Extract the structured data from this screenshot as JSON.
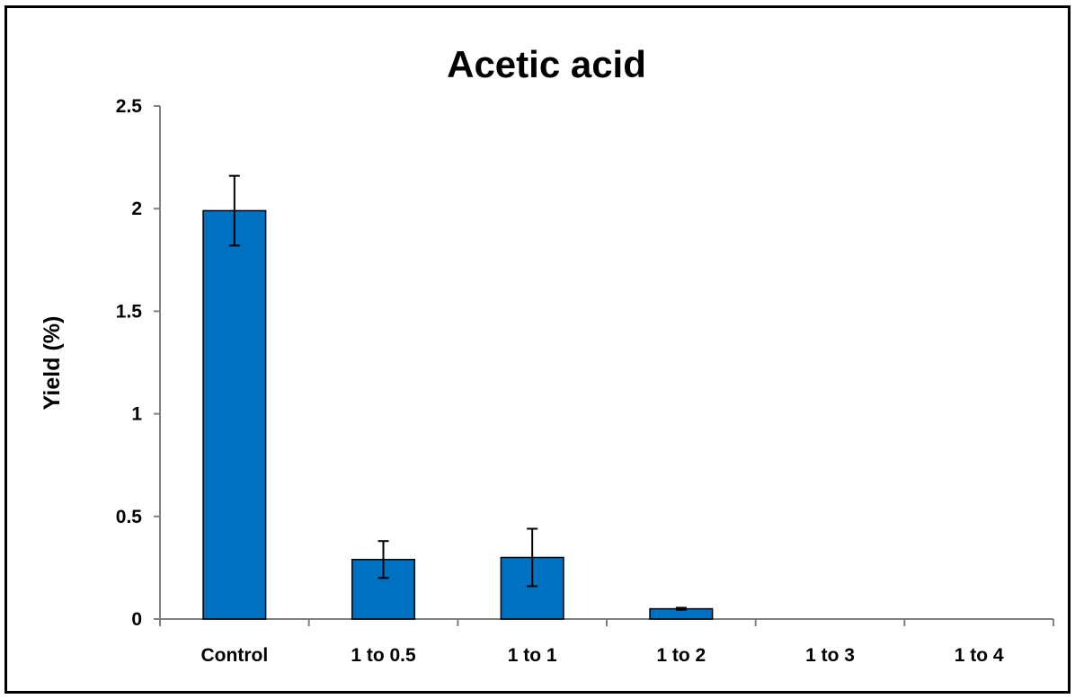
{
  "chart_data": {
    "type": "bar",
    "title": "Acetic acid",
    "xlabel": "",
    "ylabel": "Yield (%)",
    "categories": [
      "Control",
      "1 to 0.5",
      "1 to 1",
      "1 to 2",
      "1 to 3",
      "1 to 4"
    ],
    "series": [
      {
        "values": [
          1.99,
          0.29,
          0.3,
          0.05,
          0,
          0
        ],
        "errors": [
          0.17,
          0.09,
          0.14,
          0.005,
          0,
          0
        ],
        "color": "#0070C0"
      }
    ],
    "ylim": [
      0,
      2.5
    ],
    "yticks": [
      "0",
      "0.5",
      "1",
      "1.5",
      "2",
      "2.5"
    ],
    "grid": false,
    "legend": "none"
  }
}
